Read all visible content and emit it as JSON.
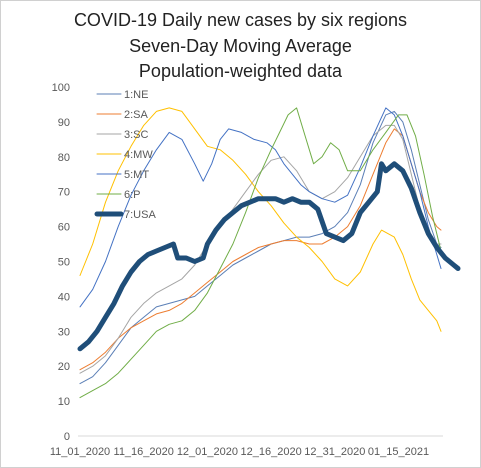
{
  "chart_data": {
    "type": "line",
    "title": [
      "COVID-19 Daily new cases by six regions",
      "Seven-Day Moving Average",
      "Population-weighted data"
    ],
    "xlabel": "",
    "ylabel": "",
    "ylim": [
      0,
      100
    ],
    "yticks": [
      0,
      10,
      20,
      30,
      40,
      50,
      60,
      70,
      80,
      90,
      100
    ],
    "xlim": [
      0,
      85
    ],
    "xticks": [
      {
        "x": 0,
        "label": "11_01_2020"
      },
      {
        "x": 15,
        "label": "11_16_2020"
      },
      {
        "x": 30,
        "label": "12_01_2020"
      },
      {
        "x": 45,
        "label": "12_16_2020"
      },
      {
        "x": 60,
        "label": "12_31_2020"
      },
      {
        "x": 75,
        "label": "01_15_2021"
      }
    ],
    "grid": false,
    "legend": "top-left, inside",
    "series": [
      {
        "name": "1:NE",
        "color": "#5b7fb6",
        "width": 1,
        "points": [
          [
            0,
            15
          ],
          [
            3,
            17
          ],
          [
            6,
            21
          ],
          [
            9,
            26
          ],
          [
            12,
            31
          ],
          [
            15,
            34
          ],
          [
            18,
            37
          ],
          [
            21,
            38
          ],
          [
            24,
            39
          ],
          [
            27,
            40
          ],
          [
            30,
            43
          ],
          [
            33,
            46
          ],
          [
            36,
            49
          ],
          [
            39,
            51
          ],
          [
            42,
            53
          ],
          [
            45,
            55
          ],
          [
            48,
            56
          ],
          [
            51,
            57
          ],
          [
            54,
            57
          ],
          [
            57,
            58
          ],
          [
            60,
            60
          ],
          [
            63,
            64
          ],
          [
            66,
            72
          ],
          [
            69,
            84
          ],
          [
            72,
            92
          ],
          [
            74,
            93
          ],
          [
            76,
            90
          ],
          [
            78,
            82
          ],
          [
            80,
            72
          ],
          [
            82,
            62
          ],
          [
            84,
            55
          ],
          [
            85,
            54
          ]
        ]
      },
      {
        "name": "2:SA",
        "color": "#ed7d31",
        "width": 1,
        "points": [
          [
            0,
            19
          ],
          [
            3,
            21
          ],
          [
            6,
            24
          ],
          [
            9,
            28
          ],
          [
            12,
            31
          ],
          [
            15,
            33
          ],
          [
            18,
            35
          ],
          [
            21,
            36
          ],
          [
            24,
            38
          ],
          [
            27,
            41
          ],
          [
            30,
            44
          ],
          [
            33,
            47
          ],
          [
            36,
            50
          ],
          [
            39,
            52
          ],
          [
            42,
            54
          ],
          [
            45,
            55
          ],
          [
            48,
            56
          ],
          [
            51,
            56
          ],
          [
            54,
            55
          ],
          [
            57,
            55
          ],
          [
            60,
            57
          ],
          [
            63,
            60
          ],
          [
            66,
            66
          ],
          [
            69,
            75
          ],
          [
            72,
            84
          ],
          [
            74,
            88
          ],
          [
            76,
            86
          ],
          [
            78,
            78
          ],
          [
            80,
            70
          ],
          [
            82,
            64
          ],
          [
            84,
            60
          ],
          [
            85,
            59
          ]
        ]
      },
      {
        "name": "3:SC",
        "color": "#a5a5a5",
        "width": 1,
        "points": [
          [
            0,
            18
          ],
          [
            3,
            20
          ],
          [
            6,
            23
          ],
          [
            9,
            28
          ],
          [
            12,
            34
          ],
          [
            15,
            38
          ],
          [
            18,
            41
          ],
          [
            21,
            43
          ],
          [
            24,
            45
          ],
          [
            27,
            49
          ],
          [
            30,
            55
          ],
          [
            33,
            60
          ],
          [
            36,
            65
          ],
          [
            39,
            70
          ],
          [
            42,
            75
          ],
          [
            45,
            79
          ],
          [
            48,
            80
          ],
          [
            51,
            76
          ],
          [
            54,
            70
          ],
          [
            57,
            68
          ],
          [
            60,
            70
          ],
          [
            63,
            74
          ],
          [
            66,
            80
          ],
          [
            69,
            86
          ],
          [
            72,
            89
          ],
          [
            74,
            89
          ],
          [
            76,
            85
          ],
          [
            78,
            75
          ],
          [
            80,
            65
          ],
          [
            82,
            58
          ],
          [
            84,
            55
          ],
          [
            85,
            55
          ]
        ]
      },
      {
        "name": "4:MW",
        "color": "#ffc000",
        "width": 1,
        "points": [
          [
            0,
            46
          ],
          [
            3,
            55
          ],
          [
            6,
            67
          ],
          [
            9,
            76
          ],
          [
            12,
            83
          ],
          [
            15,
            89
          ],
          [
            18,
            93
          ],
          [
            21,
            94
          ],
          [
            24,
            93
          ],
          [
            27,
            88
          ],
          [
            30,
            83
          ],
          [
            33,
            82
          ],
          [
            36,
            79
          ],
          [
            39,
            75
          ],
          [
            42,
            70
          ],
          [
            45,
            66
          ],
          [
            48,
            61
          ],
          [
            51,
            57
          ],
          [
            54,
            54
          ],
          [
            57,
            50
          ],
          [
            60,
            45
          ],
          [
            63,
            43
          ],
          [
            66,
            47
          ],
          [
            69,
            55
          ],
          [
            71,
            59
          ],
          [
            74,
            57
          ],
          [
            76,
            52
          ],
          [
            78,
            45
          ],
          [
            80,
            39
          ],
          [
            82,
            36
          ],
          [
            84,
            33
          ],
          [
            85,
            30
          ]
        ]
      },
      {
        "name": "5:MT",
        "color": "#4472c4",
        "width": 1,
        "points": [
          [
            0,
            37
          ],
          [
            3,
            42
          ],
          [
            6,
            50
          ],
          [
            9,
            60
          ],
          [
            12,
            69
          ],
          [
            15,
            76
          ],
          [
            18,
            82
          ],
          [
            21,
            87
          ],
          [
            24,
            85
          ],
          [
            27,
            78
          ],
          [
            29,
            73
          ],
          [
            31,
            78
          ],
          [
            33,
            85
          ],
          [
            35,
            88
          ],
          [
            38,
            87
          ],
          [
            41,
            85
          ],
          [
            44,
            84
          ],
          [
            46,
            82
          ],
          [
            48,
            78
          ],
          [
            50,
            75
          ],
          [
            52,
            72
          ],
          [
            54,
            70
          ],
          [
            57,
            68
          ],
          [
            60,
            67
          ],
          [
            63,
            69
          ],
          [
            66,
            77
          ],
          [
            69,
            86
          ],
          [
            72,
            94
          ],
          [
            74,
            92
          ],
          [
            76,
            86
          ],
          [
            78,
            78
          ],
          [
            80,
            70
          ],
          [
            82,
            60
          ],
          [
            84,
            52
          ],
          [
            85,
            48
          ]
        ]
      },
      {
        "name": "6:P",
        "color": "#70ad47",
        "width": 1,
        "points": [
          [
            0,
            11
          ],
          [
            3,
            13
          ],
          [
            6,
            15
          ],
          [
            9,
            18
          ],
          [
            12,
            22
          ],
          [
            15,
            26
          ],
          [
            18,
            30
          ],
          [
            21,
            32
          ],
          [
            24,
            33
          ],
          [
            27,
            36
          ],
          [
            30,
            41
          ],
          [
            33,
            48
          ],
          [
            36,
            55
          ],
          [
            39,
            64
          ],
          [
            42,
            74
          ],
          [
            45,
            82
          ],
          [
            47,
            87
          ],
          [
            49,
            92
          ],
          [
            51,
            94
          ],
          [
            53,
            86
          ],
          [
            55,
            78
          ],
          [
            57,
            80
          ],
          [
            59,
            84
          ],
          [
            61,
            82
          ],
          [
            63,
            76
          ],
          [
            66,
            76
          ],
          [
            69,
            82
          ],
          [
            72,
            87
          ],
          [
            75,
            92
          ],
          [
            77,
            92
          ],
          [
            79,
            86
          ],
          [
            81,
            75
          ],
          [
            83,
            63
          ],
          [
            85,
            53
          ]
        ]
      },
      {
        "name": "7:USA",
        "color": "#1f4e79",
        "width": 5,
        "points": [
          [
            0,
            25
          ],
          [
            2,
            27
          ],
          [
            4,
            30
          ],
          [
            6,
            34
          ],
          [
            8,
            38
          ],
          [
            10,
            43
          ],
          [
            12,
            47
          ],
          [
            14,
            50
          ],
          [
            16,
            52
          ],
          [
            18,
            53
          ],
          [
            20,
            54
          ],
          [
            22,
            55
          ],
          [
            23,
            51
          ],
          [
            25,
            51
          ],
          [
            27,
            50
          ],
          [
            29,
            51
          ],
          [
            30,
            55
          ],
          [
            32,
            59
          ],
          [
            34,
            62
          ],
          [
            36,
            64
          ],
          [
            38,
            66
          ],
          [
            40,
            67
          ],
          [
            42,
            68
          ],
          [
            44,
            68
          ],
          [
            46,
            68
          ],
          [
            48,
            67
          ],
          [
            50,
            68
          ],
          [
            52,
            67
          ],
          [
            54,
            67
          ],
          [
            56,
            65
          ],
          [
            58,
            58
          ],
          [
            60,
            57
          ],
          [
            62,
            56
          ],
          [
            64,
            58
          ],
          [
            66,
            64
          ],
          [
            68,
            67
          ],
          [
            70,
            70
          ],
          [
            71,
            78
          ],
          [
            72,
            76
          ],
          [
            74,
            78
          ],
          [
            76,
            76
          ],
          [
            78,
            71
          ],
          [
            80,
            64
          ],
          [
            82,
            58
          ],
          [
            84,
            54
          ],
          [
            86,
            51
          ],
          [
            88,
            49
          ],
          [
            89,
            48
          ]
        ]
      }
    ]
  }
}
